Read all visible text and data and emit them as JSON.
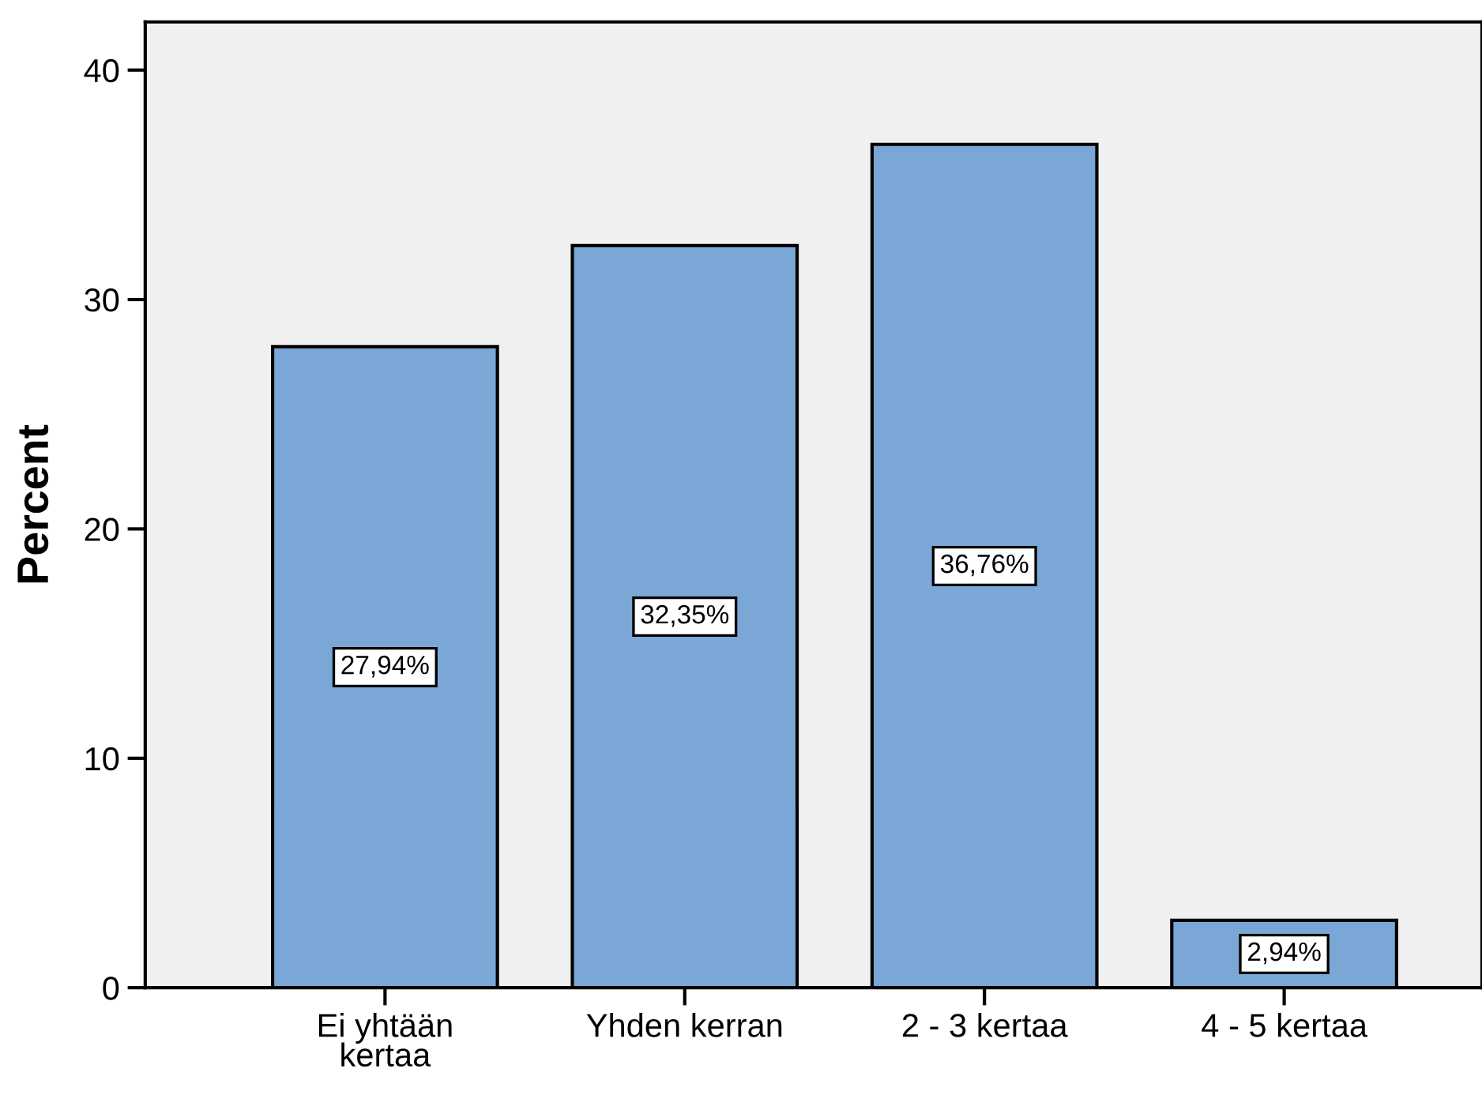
{
  "chart_data": {
    "type": "bar",
    "ylabel": "Percent",
    "categories": [
      "Ei yhtään\nkertaa",
      "Yhden kerran",
      "2 - 3 kertaa",
      "4 - 5 kertaa"
    ],
    "values": [
      27.94,
      32.35,
      36.76,
      2.94
    ],
    "value_labels": [
      "27,94%",
      "32,35%",
      "36,76%",
      "2,94%"
    ],
    "color": "#7ba7d6",
    "ylim": [
      0,
      42.1
    ],
    "yticks": [
      0,
      10,
      20,
      30,
      40
    ],
    "grid": false
  }
}
